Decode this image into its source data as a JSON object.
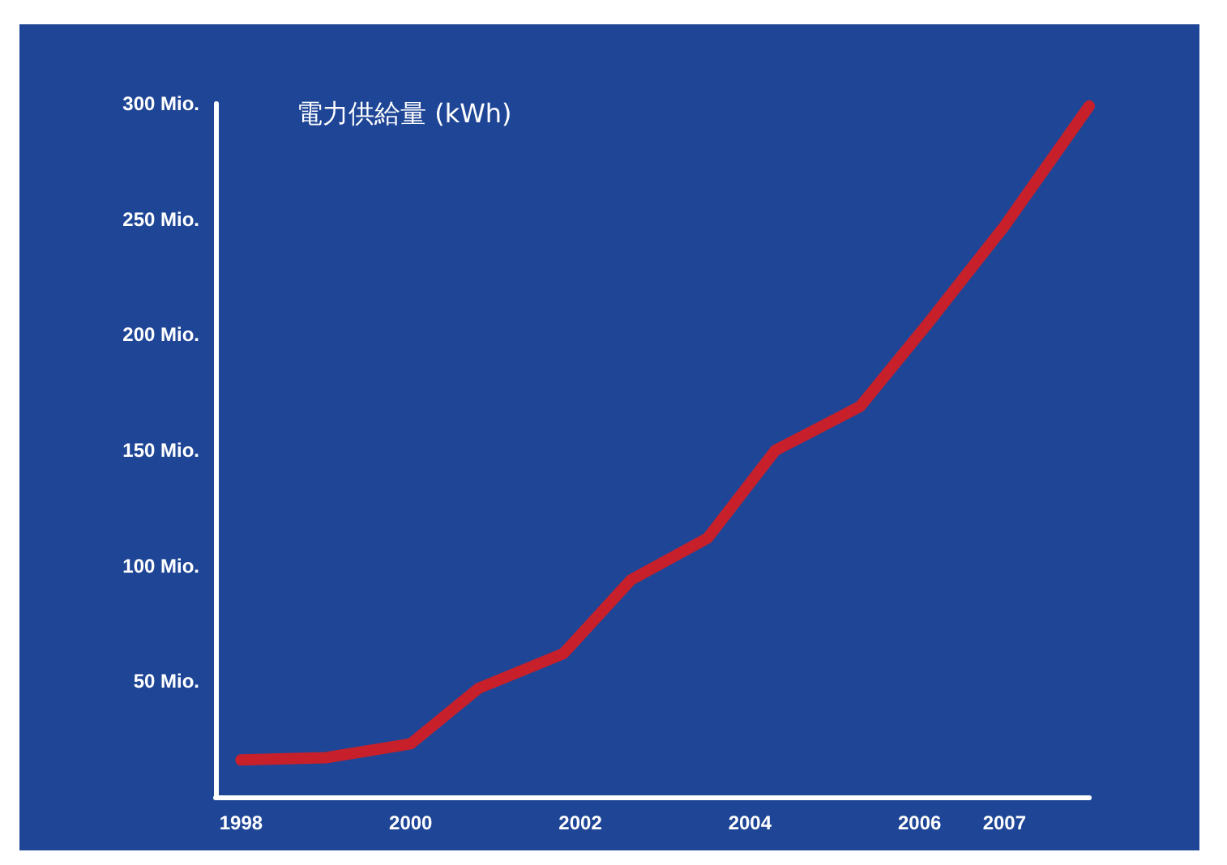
{
  "chart_data": {
    "type": "line",
    "ylabel": "電力供給量 (kWh)",
    "x": [
      1998,
      1999,
      2000,
      2000.8,
      2001.8,
      2002.6,
      2003.5,
      2004.3,
      2005.3,
      2006.1,
      2007,
      2008
    ],
    "series": [
      {
        "color": "#c8202a",
        "values": [
          16,
          17,
          23,
          47,
          62,
          94,
          112,
          150,
          169,
          205,
          247,
          299
        ]
      }
    ],
    "xlim": [
      1997.7,
      2008
    ],
    "xticks": [
      1998,
      2000,
      2002,
      2004,
      2006,
      2007
    ],
    "ylim": [
      0,
      300
    ],
    "yticks": [
      {
        "value": 0,
        "label": null
      },
      {
        "value": 50,
        "label": "50 Mio."
      },
      {
        "value": 100,
        "label": "100 Mio."
      },
      {
        "value": 150,
        "label": "150 Mio."
      },
      {
        "value": 200,
        "label": "200 Mio."
      },
      {
        "value": 250,
        "label": "250 Mio."
      },
      {
        "value": 300,
        "label": "300 Mio."
      }
    ],
    "grid": false,
    "line_style": "solid"
  }
}
